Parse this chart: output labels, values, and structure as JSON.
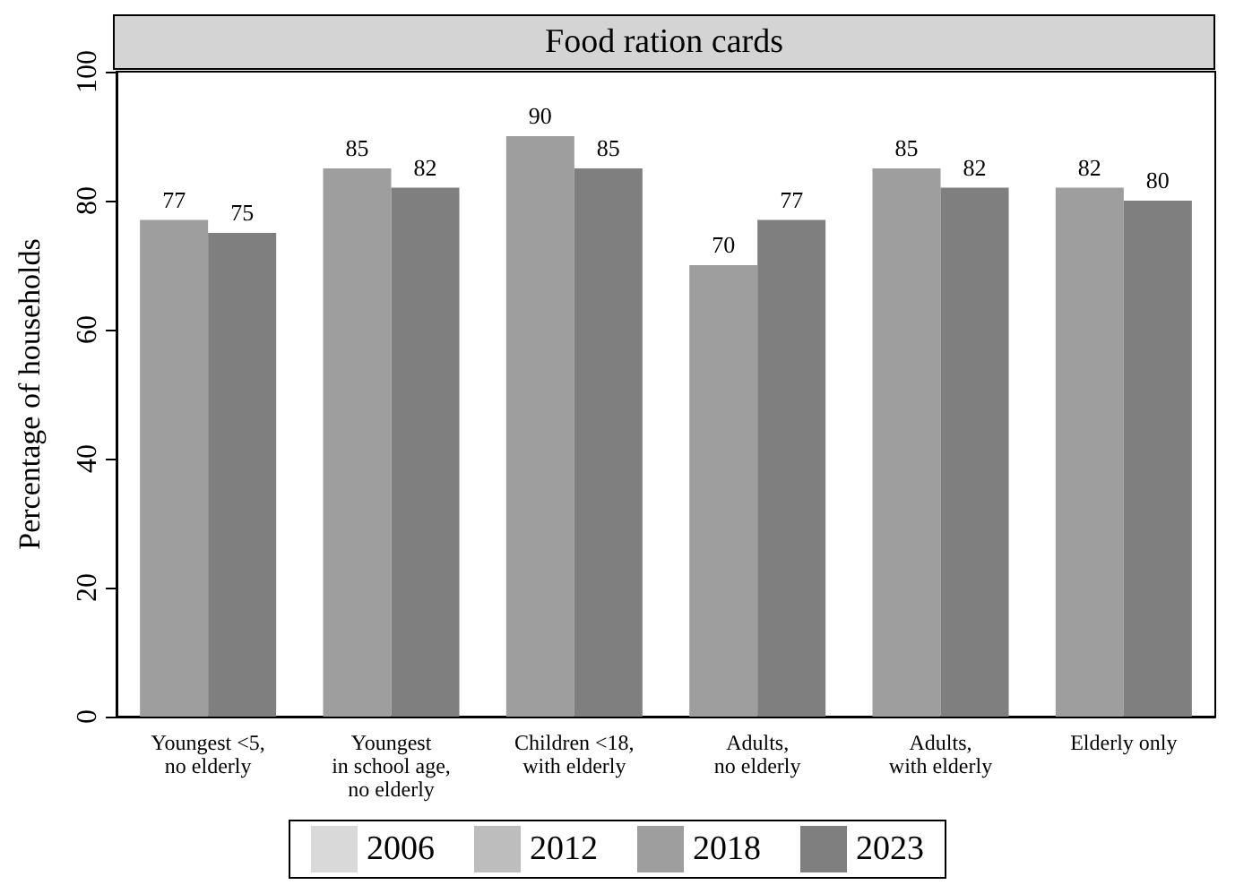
{
  "chart_data": {
    "type": "bar",
    "title": "Food ration cards",
    "ylabel": "Percentage of households",
    "categories": [
      "Youngest <5,\nno elderly",
      "Youngest\nin school age,\nno elderly",
      "Children <18,\nwith elderly",
      "Adults,\nno elderly",
      "Adults,\nwith elderly",
      "Elderly only"
    ],
    "series": [
      {
        "name": "2006",
        "color": "#d9d9d9",
        "values": [
          null,
          null,
          null,
          null,
          null,
          null
        ]
      },
      {
        "name": "2012",
        "color": "#bdbdbd",
        "values": [
          null,
          null,
          null,
          null,
          null,
          null
        ]
      },
      {
        "name": "2018",
        "color": "#9e9e9e",
        "values": [
          77,
          85,
          90,
          70,
          85,
          82
        ]
      },
      {
        "name": "2023",
        "color": "#7f7f7f",
        "values": [
          75,
          82,
          85,
          77,
          82,
          80
        ]
      }
    ],
    "ylim": [
      0,
      100
    ],
    "yticks": [
      0,
      20,
      40,
      60,
      80,
      100
    ],
    "grid": false,
    "legend": "bottom",
    "data_labels": true
  }
}
